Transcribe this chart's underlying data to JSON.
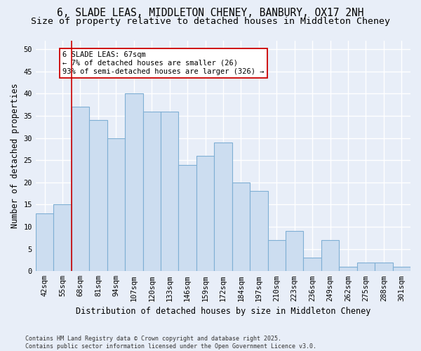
{
  "title_line1": "6, SLADE LEAS, MIDDLETON CHENEY, BANBURY, OX17 2NH",
  "title_line2": "Size of property relative to detached houses in Middleton Cheney",
  "xlabel": "Distribution of detached houses by size in Middleton Cheney",
  "ylabel": "Number of detached properties",
  "categories": [
    "42sqm",
    "55sqm",
    "68sqm",
    "81sqm",
    "94sqm",
    "107sqm",
    "120sqm",
    "133sqm",
    "146sqm",
    "159sqm",
    "172sqm",
    "184sqm",
    "197sqm",
    "210sqm",
    "223sqm",
    "236sqm",
    "249sqm",
    "262sqm",
    "275sqm",
    "288sqm",
    "301sqm"
  ],
  "values": [
    13,
    15,
    37,
    34,
    30,
    40,
    36,
    36,
    24,
    26,
    29,
    20,
    18,
    7,
    9,
    3,
    7,
    1,
    2,
    2,
    1
  ],
  "bar_color": "#ccddf0",
  "bar_edge_color": "#7fafd4",
  "vline_index": 2,
  "vline_color": "#cc0000",
  "annotation_title": "6 SLADE LEAS: 67sqm",
  "annotation_line1": "← 7% of detached houses are smaller (26)",
  "annotation_line2": "93% of semi-detached houses are larger (326) →",
  "annotation_box_facecolor": "white",
  "annotation_box_edgecolor": "#cc0000",
  "ylim_max": 52,
  "yticks": [
    0,
    5,
    10,
    15,
    20,
    25,
    30,
    35,
    40,
    45,
    50
  ],
  "bg_color": "#e8eef8",
  "grid_color": "white",
  "footer": "Contains HM Land Registry data © Crown copyright and database right 2025.\nContains public sector information licensed under the Open Government Licence v3.0.",
  "title_fontsize": 10.5,
  "subtitle_fontsize": 9.5,
  "axis_label_fontsize": 8.5,
  "tick_fontsize": 7.5,
  "annotation_fontsize": 7.5,
  "footer_fontsize": 6.0
}
